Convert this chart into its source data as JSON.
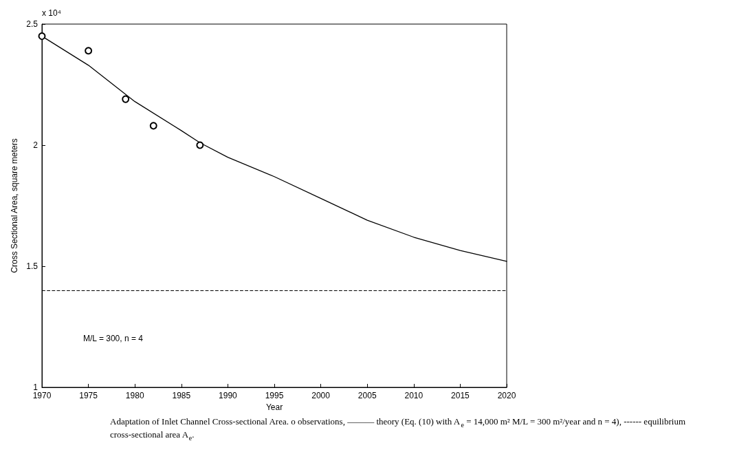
{
  "chart_data": {
    "type": "line",
    "xlabel": "Year",
    "ylabel": "Cross Sectional Area, square meters",
    "xlim": [
      1970,
      2020
    ],
    "xticks": [
      1970,
      1975,
      1980,
      1985,
      1990,
      1995,
      2000,
      2005,
      2010,
      2015,
      2020
    ],
    "ylim": [
      1,
      2.5
    ],
    "yticks": [
      1,
      1.5,
      2,
      2.5
    ],
    "grid": false,
    "series": [
      {
        "type": "scatter",
        "marker": "circle",
        "color": "#000000",
        "x": [
          1970,
          1975,
          1979,
          1982,
          1987
        ],
        "values": [
          2.45,
          2.39,
          2.19,
          2.08,
          2.0
        ]
      },
      {
        "marker": "none",
        "line_style": "solid",
        "color": "#000000",
        "x": [
          1970,
          1975,
          1980,
          1985,
          1987,
          1990,
          1995,
          2000,
          2005,
          2010,
          2015,
          2020
        ],
        "values": [
          2.45,
          2.33,
          2.18,
          2.06,
          2.01,
          1.95,
          1.87,
          1.78,
          1.69,
          1.62,
          1.565,
          1.52
        ]
      }
    ],
    "ref_lines": [
      {
        "axis": "y",
        "value": 1.4,
        "color": "#000000",
        "line_style": "dashed"
      }
    ],
    "annotations": [
      "x 10⁴",
      "M/L = 300, n = 4",
      "Adaptation of Inlet Channel Cross-sectional Area. o observations, ——— theory (Eq. (10) with A$_{e}$ = 14,000 m² M/L = 300 m²/year and n = 4), ------ equilibrium cross-sectional area A$_{e}$."
    ]
  }
}
